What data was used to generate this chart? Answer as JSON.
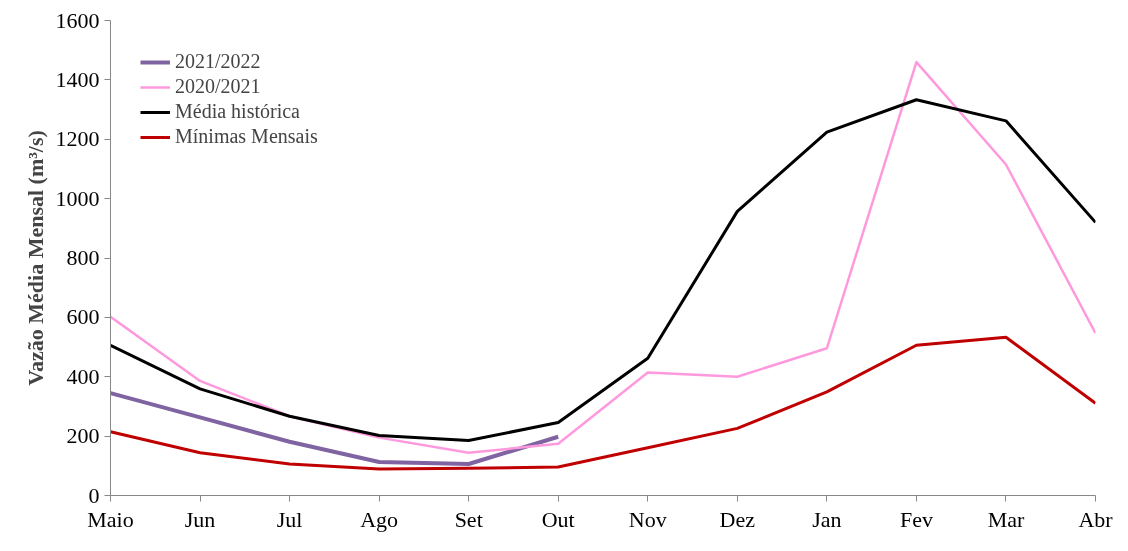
{
  "chart_data": {
    "type": "line",
    "ylabel": "Vazão Média Mensal (m³/s)",
    "categories": [
      "Maio",
      "Jun",
      "Jul",
      "Ago",
      "Set",
      "Out",
      "Nov",
      "Dez",
      "Jan",
      "Fev",
      "Mar",
      "Abr"
    ],
    "series": [
      {
        "name": "2021/2022",
        "color": "#8064a2",
        "values": [
          345,
          263,
          181,
          113,
          106,
          198,
          null,
          null,
          null,
          null,
          null,
          null
        ]
      },
      {
        "name": "2020/2021",
        "color": "#ff99dd",
        "values": [
          602,
          386,
          267,
          195,
          144,
          174,
          414,
          400,
          496,
          1460,
          1115,
          547
        ]
      },
      {
        "name": "Média histórica",
        "color": "#000000",
        "values": [
          506,
          359,
          267,
          202,
          185,
          246,
          462,
          957,
          1224,
          1333,
          1262,
          920
        ]
      },
      {
        "name": "Mínimas Mensais",
        "color": "#c00000",
        "values": [
          215,
          144,
          106,
          89,
          92,
          96,
          161,
          226,
          349,
          506,
          533,
          311
        ]
      }
    ],
    "ylim": [
      0,
      1600
    ],
    "yticks": [
      0,
      200,
      400,
      600,
      800,
      1000,
      1200,
      1400,
      1600
    ],
    "grid": false,
    "legend": "top left",
    "marker": "none",
    "line_style": "solid"
  }
}
